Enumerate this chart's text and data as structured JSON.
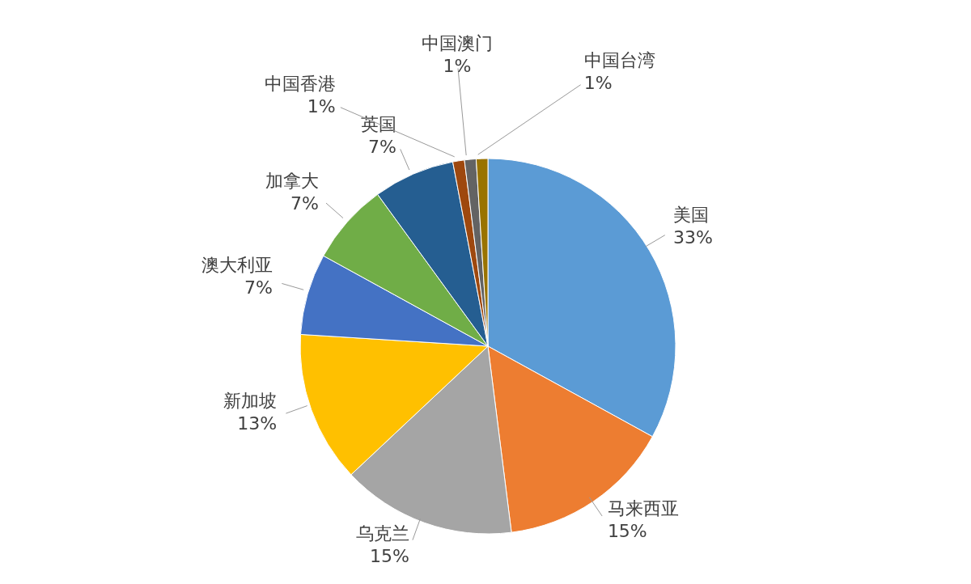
{
  "chart_data": {
    "type": "pie",
    "categories": [
      "美国",
      "马来西亚",
      "乌克兰",
      "新加坡",
      "澳大利亚",
      "加拿大",
      "英国",
      "中国香港",
      "中国澳门",
      "中国台湾"
    ],
    "values": [
      33,
      15,
      15,
      13,
      7,
      7,
      7,
      1,
      1,
      1
    ],
    "colors": [
      "#5b9bd5",
      "#ed7d31",
      "#a5a5a5",
      "#ffc000",
      "#4472c4",
      "#70ad47",
      "#255e91",
      "#9e480e",
      "#636363",
      "#997300"
    ],
    "value_labels": [
      "33%",
      "15%",
      "15%",
      "13%",
      "7%",
      "7%",
      "7%",
      "1%",
      "1%",
      "1%"
    ],
    "legend": false
  }
}
